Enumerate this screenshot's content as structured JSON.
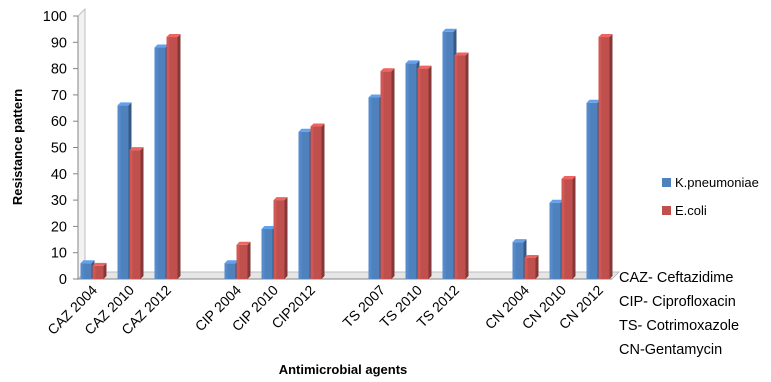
{
  "chart_data": {
    "type": "bar",
    "title": "",
    "xlabel": "Antimicrobial agents",
    "ylabel": "Resistance pattern",
    "ylim": [
      0,
      100
    ],
    "yticks": [
      0,
      10,
      20,
      30,
      40,
      50,
      60,
      70,
      80,
      90,
      100
    ],
    "grid": false,
    "legend_position": "right",
    "categories": [
      "CAZ 2004",
      "CAZ 2010",
      "CAZ 2012",
      "CIP 2004",
      "CIP 2010",
      "CIP2012",
      "TS 2007",
      "TS 2010",
      "TS 2012",
      "CN 2004",
      "CN 2010",
      "CN 2012"
    ],
    "category_groups": [
      [
        0,
        1,
        2
      ],
      [
        3,
        4,
        5
      ],
      [
        6,
        7,
        8
      ],
      [
        9,
        10,
        11
      ]
    ],
    "series": [
      {
        "name": "K.pneumoniae",
        "color": "#4f81bd",
        "values": [
          6,
          66,
          88,
          6,
          19,
          56,
          69,
          82,
          94,
          14,
          29,
          67
        ]
      },
      {
        "name": "E.coli",
        "color": "#c0504d",
        "values": [
          5,
          49,
          92,
          13,
          30,
          58,
          79,
          80,
          85,
          8,
          38,
          92
        ]
      }
    ],
    "annotations": [
      "CAZ- Ceftazidime",
      "CIP- Ciprofloxacin",
      "TS- Cotrimoxazole",
      "CN-Gentamycin"
    ]
  }
}
